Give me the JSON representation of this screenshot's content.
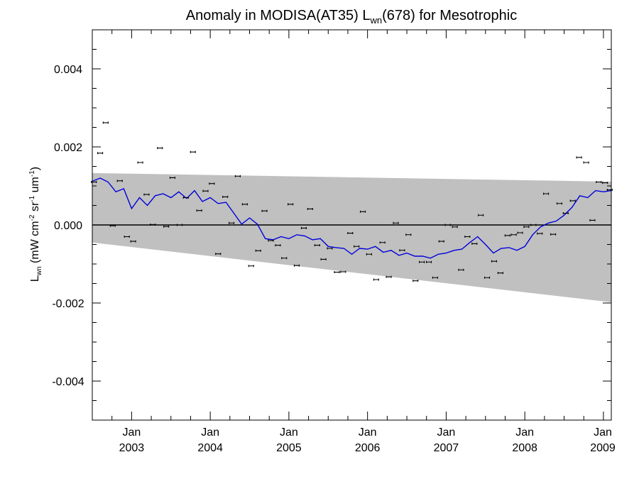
{
  "chart_data": {
    "type": "line",
    "title": {
      "main": "Anomaly in MODISA(AT35) L",
      "sub": "wn",
      "suffix": "(678) for Mesotrophic"
    },
    "ylabel": {
      "l": "L",
      "lsub": "wn",
      "u1": " (mW cm",
      "s1": "-2",
      "u2": " sr",
      "s2": "-1",
      "u3": " um",
      "s3": "-1",
      "u4": ")"
    },
    "xlim": [
      2002.5,
      2009.1
    ],
    "ylim": [
      -0.005,
      0.005
    ],
    "yticks": [
      {
        "v": -0.004,
        "label": "-0.004"
      },
      {
        "v": -0.002,
        "label": "-0.002"
      },
      {
        "v": 0.0,
        "label": "0.000"
      },
      {
        "v": 0.002,
        "label": "0.002"
      },
      {
        "v": 0.004,
        "label": "0.004"
      }
    ],
    "xticks": [
      {
        "v": 2003,
        "month": "Jan",
        "year": "2003"
      },
      {
        "v": 2004,
        "month": "Jan",
        "year": "2004"
      },
      {
        "v": 2005,
        "month": "Jan",
        "year": "2005"
      },
      {
        "v": 2006,
        "month": "Jan",
        "year": "2006"
      },
      {
        "v": 2007,
        "month": "Jan",
        "year": "2007"
      },
      {
        "v": 2008,
        "month": "Jan",
        "year": "2008"
      },
      {
        "v": 2009,
        "month": "Jan",
        "year": "2009"
      }
    ],
    "band": {
      "x": [
        2002.5,
        2009.1
      ],
      "upper": [
        0.00133,
        0.00111
      ],
      "lower": [
        -0.00045,
        -0.00198
      ]
    },
    "zero_line": 0.0,
    "colors": {
      "running_mean": "#0000dd",
      "band": "#c0c0c0",
      "points": "#000000",
      "zero_line": "#000000"
    },
    "running_mean": {
      "x": [
        2002.5,
        2002.6,
        2002.7,
        2002.8,
        2002.9,
        2003.0,
        2003.1,
        2003.2,
        2003.3,
        2003.4,
        2003.5,
        2003.6,
        2003.7,
        2003.8,
        2003.9,
        2004.0,
        2004.1,
        2004.2,
        2004.3,
        2004.4,
        2004.5,
        2004.6,
        2004.7,
        2004.8,
        2004.9,
        2005.0,
        2005.1,
        2005.2,
        2005.3,
        2005.4,
        2005.5,
        2005.6,
        2005.7,
        2005.8,
        2005.9,
        2006.0,
        2006.1,
        2006.2,
        2006.3,
        2006.4,
        2006.5,
        2006.6,
        2006.7,
        2006.8,
        2006.9,
        2007.0,
        2007.1,
        2007.2,
        2007.3,
        2007.4,
        2007.5,
        2007.6,
        2007.7,
        2007.8,
        2007.9,
        2008.0,
        2008.1,
        2008.2,
        2008.3,
        2008.4,
        2008.5,
        2008.6,
        2008.7,
        2008.8,
        2008.9,
        2009.0,
        2009.1
      ],
      "y": [
        0.00112,
        0.0012,
        0.0011,
        0.00085,
        0.00093,
        0.00042,
        0.0007,
        0.0005,
        0.00075,
        0.0008,
        0.0007,
        0.00085,
        0.00068,
        0.00088,
        0.0006,
        0.0007,
        0.00055,
        0.00058,
        0.0003,
        2e-05,
        0.00018,
        2e-05,
        -0.00035,
        -0.00038,
        -0.0003,
        -0.00035,
        -0.00025,
        -0.00028,
        -0.00038,
        -0.00035,
        -0.00055,
        -0.00058,
        -0.0006,
        -0.00075,
        -0.0006,
        -0.00062,
        -0.00055,
        -0.0007,
        -0.00065,
        -0.00078,
        -0.00072,
        -0.0008,
        -0.0008,
        -0.00085,
        -0.00075,
        -0.00072,
        -0.00065,
        -0.00062,
        -0.00045,
        -0.0003,
        -0.0005,
        -0.00072,
        -0.0006,
        -0.00058,
        -0.00065,
        -0.00055,
        -0.00025,
        -5e-05,
        5e-05,
        0.0001,
        0.00025,
        0.00045,
        0.00075,
        0.0007,
        0.00088,
        0.00085,
        0.00088
      ]
    },
    "points": {
      "x": [
        2002.52,
        2002.6,
        2002.67,
        2002.76,
        2002.85,
        2002.94,
        2003.02,
        2003.11,
        2003.19,
        2003.27,
        2003.36,
        2003.44,
        2003.52,
        2003.61,
        2003.69,
        2003.78,
        2003.86,
        2003.94,
        2004.02,
        2004.1,
        2004.19,
        2004.27,
        2004.35,
        2004.44,
        2004.52,
        2004.61,
        2004.69,
        2004.77,
        2004.86,
        2004.94,
        2005.02,
        2005.1,
        2005.19,
        2005.27,
        2005.36,
        2005.44,
        2005.52,
        2005.61,
        2005.69,
        2005.78,
        2005.86,
        2005.94,
        2006.02,
        2006.11,
        2006.19,
        2006.27,
        2006.36,
        2006.44,
        2006.52,
        2006.61,
        2006.69,
        2006.78,
        2006.86,
        2006.94,
        2007.02,
        2007.11,
        2007.19,
        2007.27,
        2007.36,
        2007.44,
        2007.52,
        2007.61,
        2007.69,
        2007.78,
        2007.86,
        2007.94,
        2008.02,
        2008.11,
        2008.19,
        2008.27,
        2008.36,
        2008.44,
        2008.52,
        2008.61,
        2008.69,
        2008.78,
        2008.86,
        2008.94,
        2009.02,
        2009.08
      ],
      "y": [
        0.0011,
        0.00184,
        0.00262,
        -2e-05,
        0.00113,
        -0.0003,
        -0.00042,
        0.0016,
        0.00078,
        1e-05,
        0.00197,
        -4e-05,
        0.00121,
        0.0,
        0.0007,
        0.00187,
        0.00037,
        0.00087,
        0.00106,
        -0.00074,
        0.00072,
        5e-05,
        0.00125,
        0.00053,
        -0.00105,
        -0.00066,
        0.00036,
        -0.0004,
        -0.00052,
        -0.00085,
        0.00053,
        -0.00104,
        -8e-05,
        0.00041,
        -0.00052,
        -0.00088,
        -0.0006,
        -0.00121,
        -0.0012,
        -0.00021,
        -0.00055,
        0.00034,
        -0.00075,
        -0.0014,
        -0.00045,
        -0.00133,
        5e-05,
        -0.00065,
        -0.00025,
        -0.00143,
        -0.00095,
        -0.00095,
        -0.00135,
        -0.00042,
        0.0,
        -5e-05,
        -0.00115,
        -0.0003,
        -0.00048,
        0.00025,
        -0.00135,
        -0.00093,
        -0.00123,
        -0.00027,
        -0.00025,
        -0.0002,
        -5e-05,
        0.0,
        -0.00022,
        0.0008,
        -0.00024,
        0.00055,
        0.0003,
        0.00062,
        0.00173,
        0.0016,
        0.00012,
        0.0011,
        0.00108,
        0.0009
      ]
    }
  }
}
